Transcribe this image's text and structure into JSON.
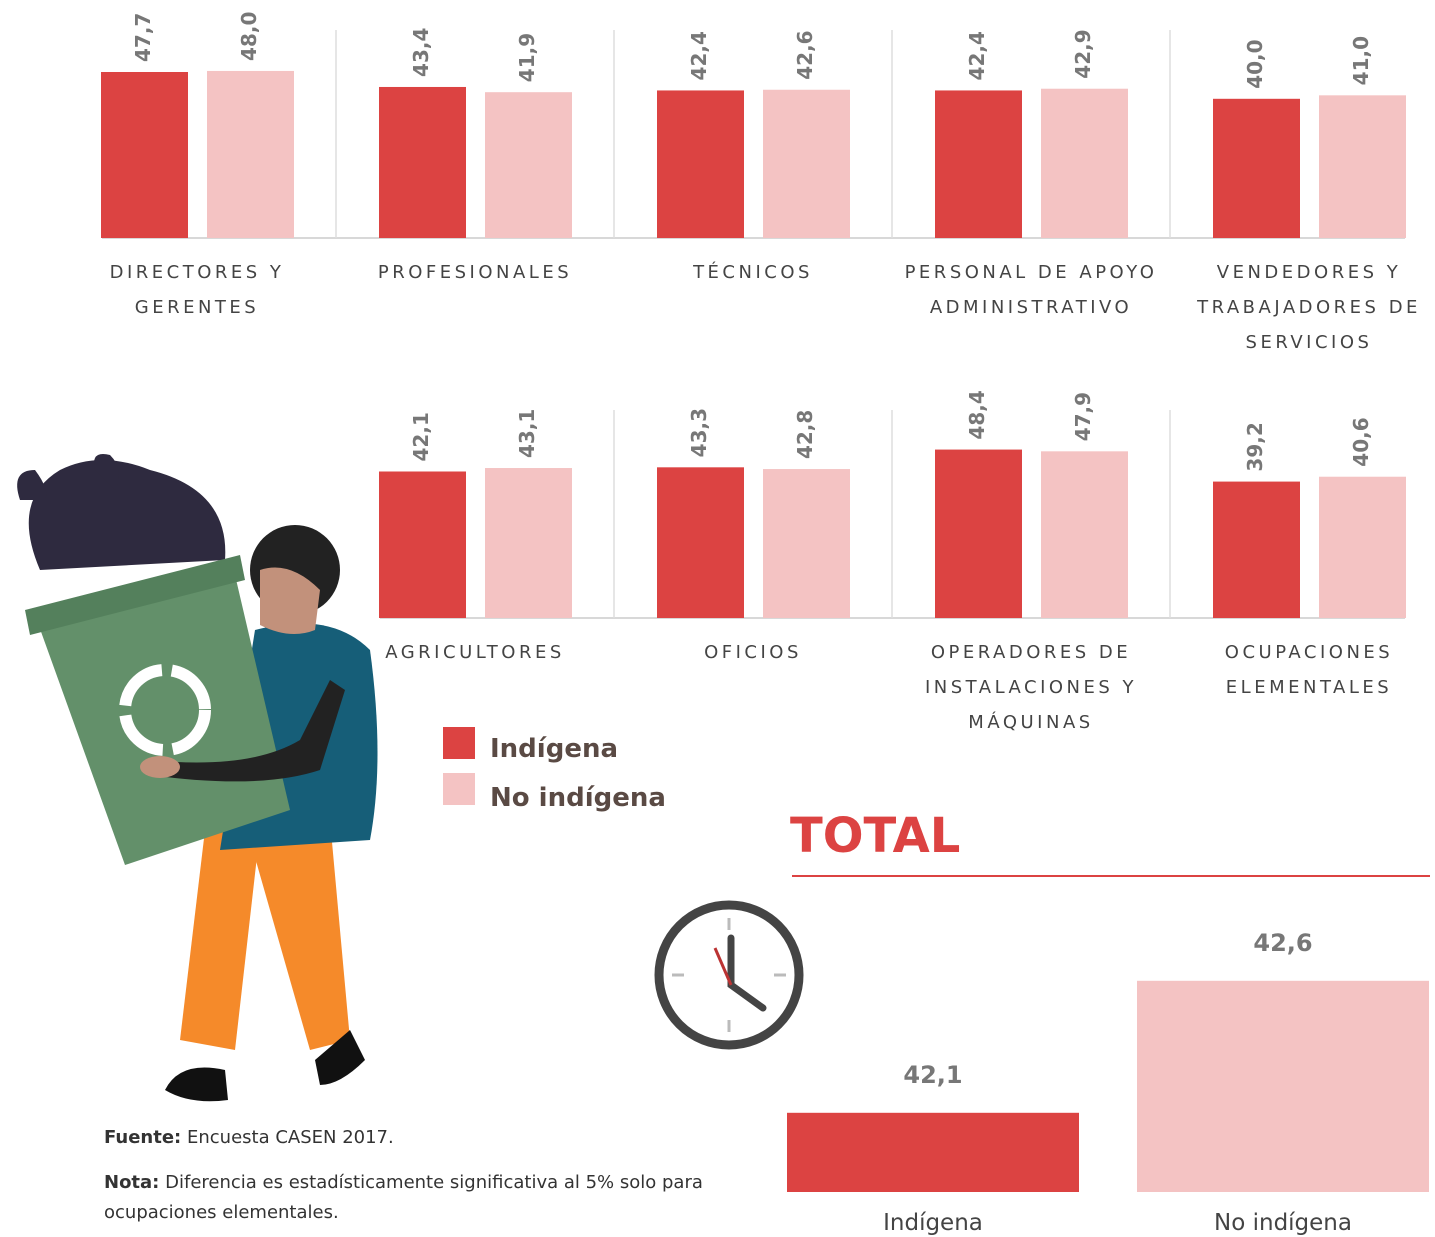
{
  "chart_data": [
    {
      "type": "bar",
      "categories": [
        "DIRECTORES Y GERENTES",
        "PROFESIONALES",
        "TÉCNICOS",
        "PERSONAL DE APOYO ADMINISTRATIVO",
        "VENDEDORES Y TRABAJADORES DE SERVICIOS"
      ],
      "series": [
        {
          "name": "Indígena",
          "color": "#dc4342",
          "values": [
            47.7,
            43.4,
            42.4,
            42.4,
            40.0
          ],
          "value_labels": [
            "47,7",
            "43,4",
            "42,4",
            "42,4",
            "40,0"
          ]
        },
        {
          "name": "No indígena",
          "color": "#f4c3c3",
          "values": [
            48.0,
            41.9,
            42.6,
            42.9,
            41.0
          ],
          "value_labels": [
            "48,0",
            "41,9",
            "42,6",
            "42,9",
            "41,0"
          ]
        }
      ],
      "ylim": [
        0,
        50
      ]
    },
    {
      "type": "bar",
      "categories": [
        "AGRICULTORES",
        "OFICIOS",
        "OPERADORES DE INSTALACIONES Y MÁQUINAS",
        "OCUPACIONES ELEMENTALES"
      ],
      "series": [
        {
          "name": "Indígena",
          "color": "#dc4342",
          "values": [
            42.1,
            43.3,
            48.4,
            39.2
          ],
          "value_labels": [
            "42,1",
            "43,3",
            "48,4",
            "39,2"
          ]
        },
        {
          "name": "No indígena",
          "color": "#f4c3c3",
          "values": [
            43.1,
            42.8,
            47.9,
            40.6
          ],
          "value_labels": [
            "43,1",
            "42,8",
            "47,9",
            "40,6"
          ]
        }
      ],
      "ylim": [
        0,
        50
      ]
    },
    {
      "type": "bar",
      "title": "TOTAL",
      "categories": [
        "Indígena",
        "No indígena"
      ],
      "values": [
        42.1,
        42.6
      ],
      "value_labels": [
        "42,1",
        "42,6"
      ],
      "colors": [
        "#dc4342",
        "#f4c3c3"
      ],
      "ylim": [
        41.8,
        42.8
      ]
    }
  ],
  "source": {
    "label": "Fuente:",
    "text": "Encuesta CASEN 2017."
  },
  "note": {
    "label": "Nota:",
    "text": "Diferencia es estadísticamente significativa al 5% solo para ocupaciones elementales."
  }
}
